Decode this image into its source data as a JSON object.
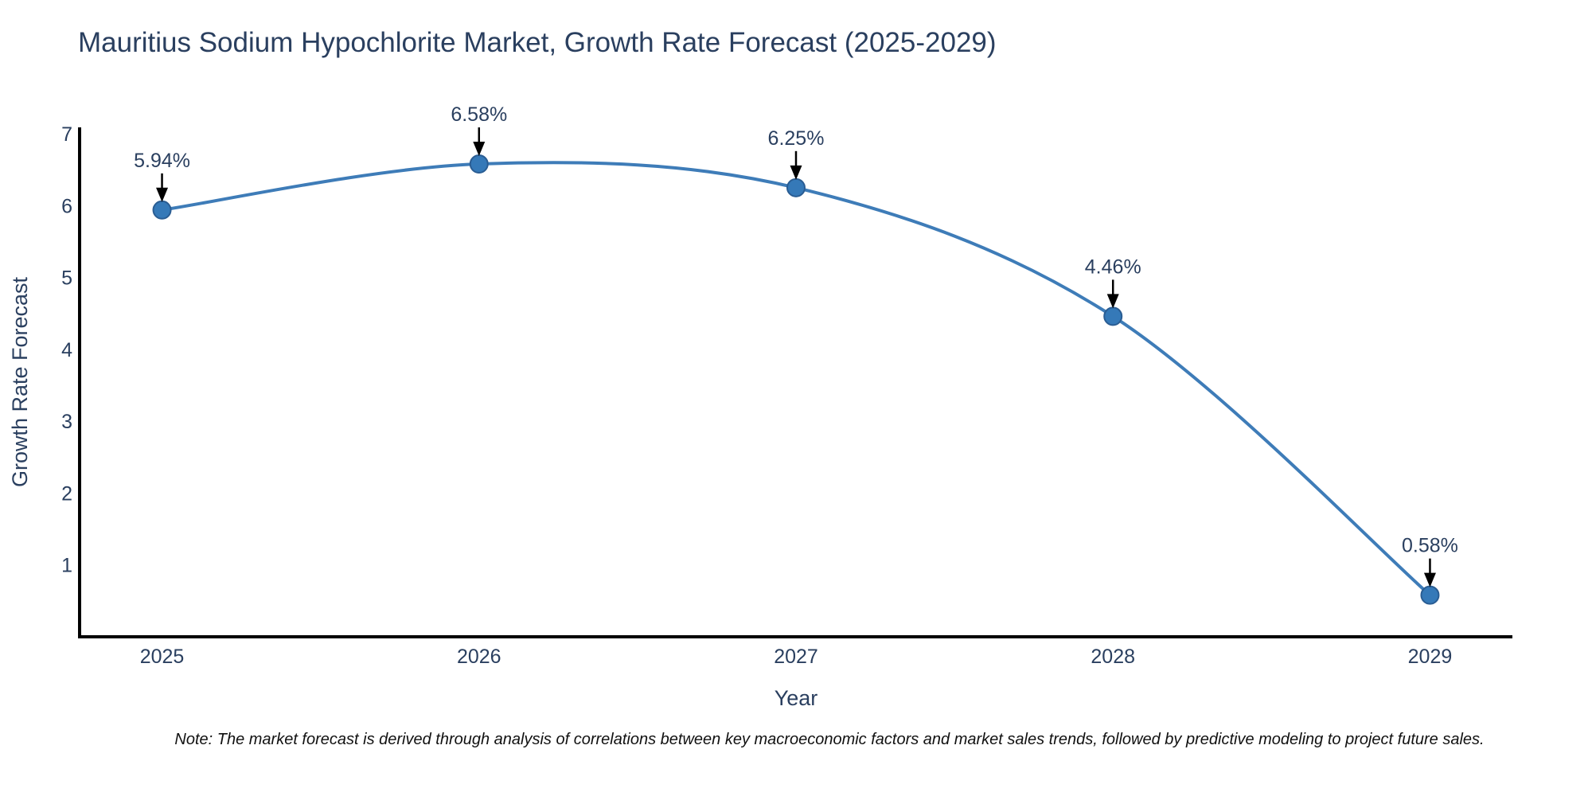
{
  "chart_data": {
    "type": "line",
    "title": "Mauritius Sodium Hypochlorite Market, Growth Rate Forecast (2025-2029)",
    "xlabel": "Year",
    "ylabel": "Growth Rate Forecast",
    "x": [
      2025,
      2026,
      2027,
      2028,
      2029
    ],
    "series": [
      {
        "name": "Growth Rate Forecast",
        "values": [
          5.94,
          6.58,
          6.25,
          4.46,
          0.58
        ]
      }
    ],
    "point_labels": [
      "5.94%",
      "6.58%",
      "6.25%",
      "4.46%",
      "0.58%"
    ],
    "xticks": [
      2025,
      2026,
      2027,
      2028,
      2029
    ],
    "yticks": [
      1,
      2,
      3,
      4,
      5,
      6,
      7
    ],
    "xlim": [
      2024.74,
      2029.26
    ],
    "ylim": [
      0,
      7.09
    ],
    "grid": false,
    "legend_position": "none",
    "line_shape": "spline",
    "colors": {
      "line": "#3e7cb8",
      "marker": "#3579b8",
      "marker_edge": "#2a5d93",
      "axis": "#000000",
      "text": "#2a3f5f",
      "annotation_arrow": "#000000"
    }
  },
  "note": "Note: The market forecast is derived through analysis of correlations between key macroeconomic factors and market sales trends, followed by predictive modeling to project future sales."
}
